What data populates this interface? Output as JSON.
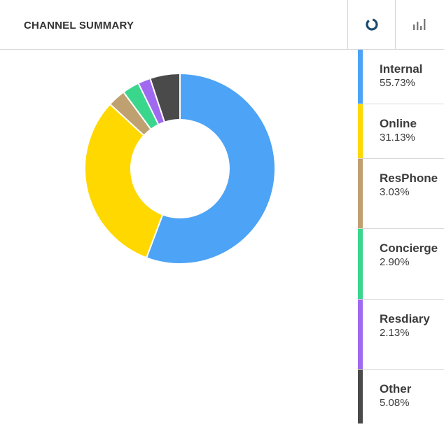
{
  "header": {
    "title": "CHANNEL SUMMARY",
    "buttons": [
      {
        "icon": "donut-chart-icon",
        "active": true
      },
      {
        "icon": "bar-chart-icon",
        "active": false
      }
    ]
  },
  "colors": {
    "active_icon": "#1a4a6e",
    "inactive_icon": "#7a7a7a"
  },
  "chart_data": {
    "type": "pie",
    "donut": true,
    "title": "CHANNEL SUMMARY",
    "legend_position": "right",
    "series": [
      {
        "name": "Internal",
        "value": 55.73,
        "label": "55.73%",
        "color": "#4da3f5"
      },
      {
        "name": "Online",
        "value": 31.13,
        "label": "31.13%",
        "color": "#ffd800"
      },
      {
        "name": "ResPhone",
        "value": 3.03,
        "label": "3.03%",
        "color": "#bfa070"
      },
      {
        "name": "Concierge",
        "value": 2.9,
        "label": "2.90%",
        "color": "#3ad68c"
      },
      {
        "name": "Resdiary",
        "value": 2.13,
        "label": "2.13%",
        "color": "#a06af0"
      },
      {
        "name": "Other",
        "value": 5.08,
        "label": "5.08%",
        "color": "#4a4a4a"
      }
    ]
  }
}
